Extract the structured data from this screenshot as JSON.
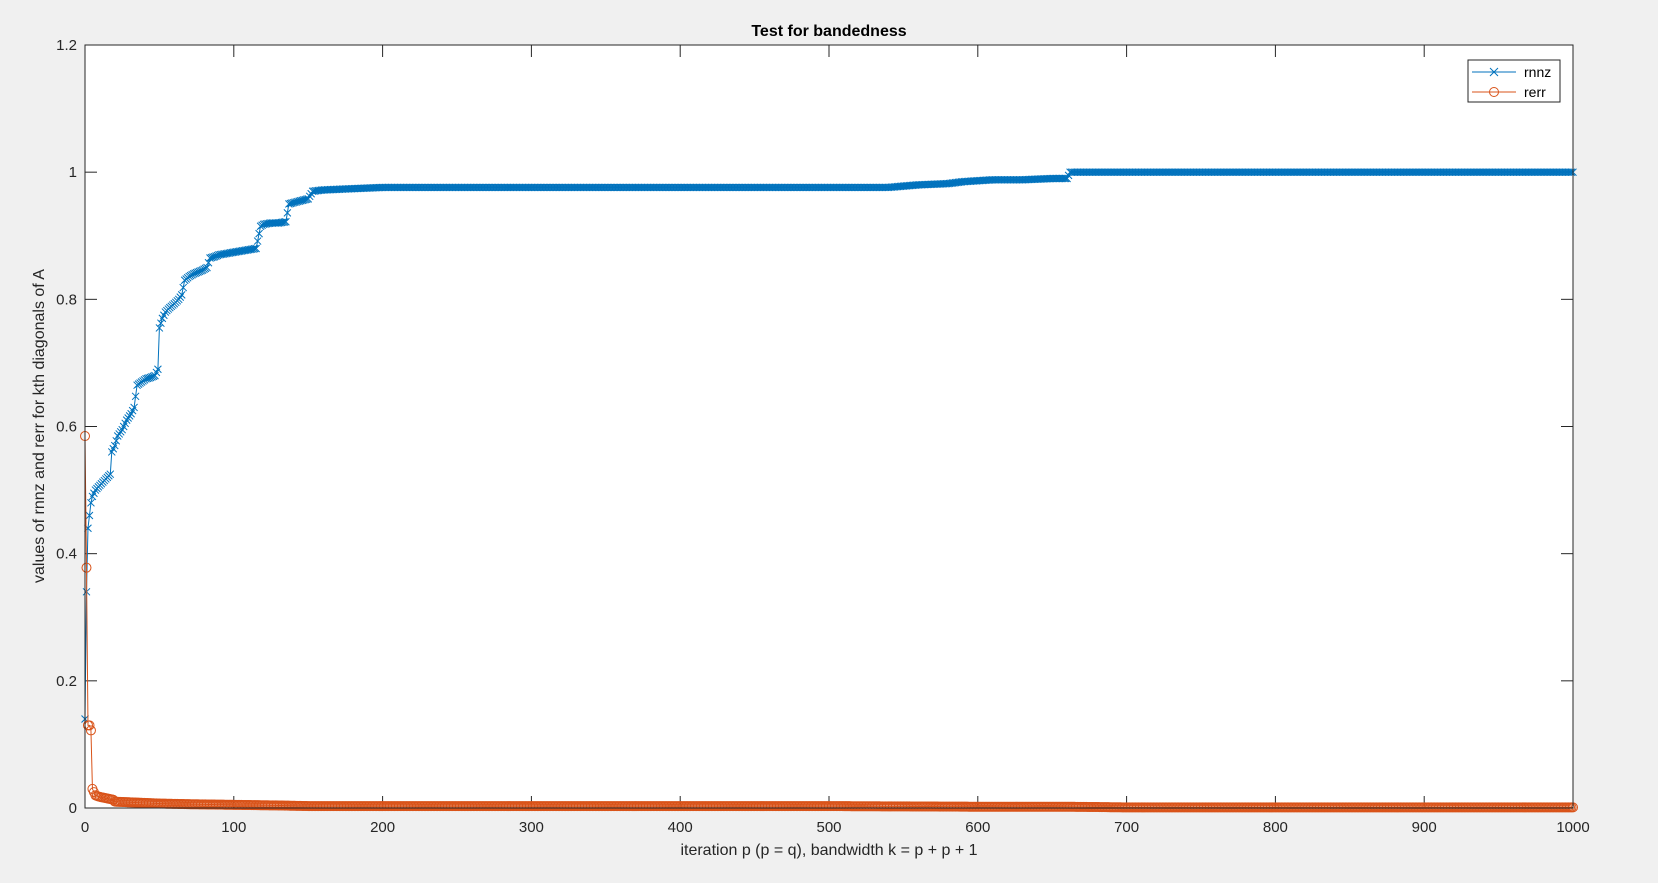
{
  "figure": {
    "background_color": "#f0f0f0",
    "axes_background_color": "#ffffff"
  },
  "chart_data": {
    "type": "line",
    "title": "Test for bandedness",
    "xlabel": "iteration p (p = q), bandwidth k = p + p + 1",
    "ylabel": "values of rnnz and rerr for kth diagonals of A",
    "xlim": [
      0,
      1000
    ],
    "ylim": [
      0,
      1.2
    ],
    "xticks": [
      0,
      100,
      200,
      300,
      400,
      500,
      600,
      700,
      800,
      900,
      1000
    ],
    "yticks": [
      0,
      0.2,
      0.4,
      0.6,
      0.8,
      1,
      1.2
    ],
    "xtick_labels": [
      "0",
      "100",
      "200",
      "300",
      "400",
      "500",
      "600",
      "700",
      "800",
      "900",
      "1000"
    ],
    "ytick_labels": [
      "0",
      "0.2",
      "0.4",
      "0.6",
      "0.8",
      "1",
      "1.2"
    ],
    "grid": false,
    "legend_position": "top-right",
    "series": [
      {
        "name": "rnnz",
        "color": "#0072bd",
        "marker": "x",
        "points": [
          [
            0,
            0.14
          ],
          [
            1,
            0.34
          ],
          [
            2,
            0.44
          ],
          [
            3,
            0.46
          ],
          [
            4,
            0.48
          ],
          [
            5,
            0.49
          ],
          [
            7,
            0.5
          ],
          [
            9,
            0.505
          ],
          [
            11,
            0.51
          ],
          [
            13,
            0.515
          ],
          [
            15,
            0.52
          ],
          [
            17,
            0.525
          ],
          [
            18,
            0.56
          ],
          [
            20,
            0.57
          ],
          [
            22,
            0.585
          ],
          [
            25,
            0.595
          ],
          [
            28,
            0.61
          ],
          [
            31,
            0.62
          ],
          [
            33,
            0.63
          ],
          [
            35,
            0.665
          ],
          [
            38,
            0.67
          ],
          [
            41,
            0.675
          ],
          [
            44,
            0.677
          ],
          [
            47,
            0.68
          ],
          [
            49,
            0.69
          ],
          [
            50,
            0.755
          ],
          [
            52,
            0.77
          ],
          [
            54,
            0.78
          ],
          [
            57,
            0.787
          ],
          [
            60,
            0.793
          ],
          [
            63,
            0.8
          ],
          [
            65,
            0.807
          ],
          [
            67,
            0.83
          ],
          [
            70,
            0.836
          ],
          [
            73,
            0.84
          ],
          [
            76,
            0.843
          ],
          [
            79,
            0.846
          ],
          [
            82,
            0.85
          ],
          [
            84,
            0.865
          ],
          [
            87,
            0.867
          ],
          [
            90,
            0.87
          ],
          [
            95,
            0.872
          ],
          [
            100,
            0.874
          ],
          [
            105,
            0.876
          ],
          [
            110,
            0.878
          ],
          [
            115,
            0.88
          ],
          [
            118,
            0.915
          ],
          [
            120,
            0.918
          ],
          [
            125,
            0.92
          ],
          [
            130,
            0.92
          ],
          [
            135,
            0.922
          ],
          [
            137,
            0.95
          ],
          [
            140,
            0.952
          ],
          [
            145,
            0.955
          ],
          [
            150,
            0.958
          ],
          [
            153,
            0.97
          ],
          [
            160,
            0.972
          ],
          [
            170,
            0.973
          ],
          [
            180,
            0.974
          ],
          [
            190,
            0.975
          ],
          [
            200,
            0.976
          ],
          [
            300,
            0.976
          ],
          [
            400,
            0.976
          ],
          [
            500,
            0.976
          ],
          [
            540,
            0.976
          ],
          [
            560,
            0.98
          ],
          [
            580,
            0.982
          ],
          [
            590,
            0.985
          ],
          [
            610,
            0.988
          ],
          [
            630,
            0.988
          ],
          [
            650,
            0.99
          ],
          [
            660,
            0.99
          ],
          [
            662,
            1.0
          ],
          [
            700,
            1.0
          ],
          [
            800,
            1.0
          ],
          [
            900,
            1.0
          ],
          [
            1000,
            1.0
          ]
        ]
      },
      {
        "name": "rerr",
        "color": "#d95319",
        "marker": "o",
        "points": [
          [
            0,
            0.585
          ],
          [
            1,
            0.378
          ],
          [
            2,
            0.13
          ],
          [
            3,
            0.13
          ],
          [
            4,
            0.122
          ],
          [
            5,
            0.03
          ],
          [
            6,
            0.025
          ],
          [
            7,
            0.02
          ],
          [
            9,
            0.018
          ],
          [
            11,
            0.017
          ],
          [
            13,
            0.016
          ],
          [
            15,
            0.015
          ],
          [
            17,
            0.014
          ],
          [
            19,
            0.013
          ],
          [
            20,
            0.01
          ],
          [
            30,
            0.009
          ],
          [
            40,
            0.008
          ],
          [
            50,
            0.007
          ],
          [
            70,
            0.006
          ],
          [
            100,
            0.005
          ],
          [
            130,
            0.004
          ],
          [
            150,
            0.003
          ],
          [
            200,
            0.003
          ],
          [
            300,
            0.003
          ],
          [
            400,
            0.003
          ],
          [
            500,
            0.003
          ],
          [
            600,
            0.002
          ],
          [
            660,
            0.002
          ],
          [
            700,
            0.001
          ],
          [
            800,
            0.001
          ],
          [
            900,
            0.001
          ],
          [
            1000,
            0.001
          ]
        ]
      }
    ]
  }
}
